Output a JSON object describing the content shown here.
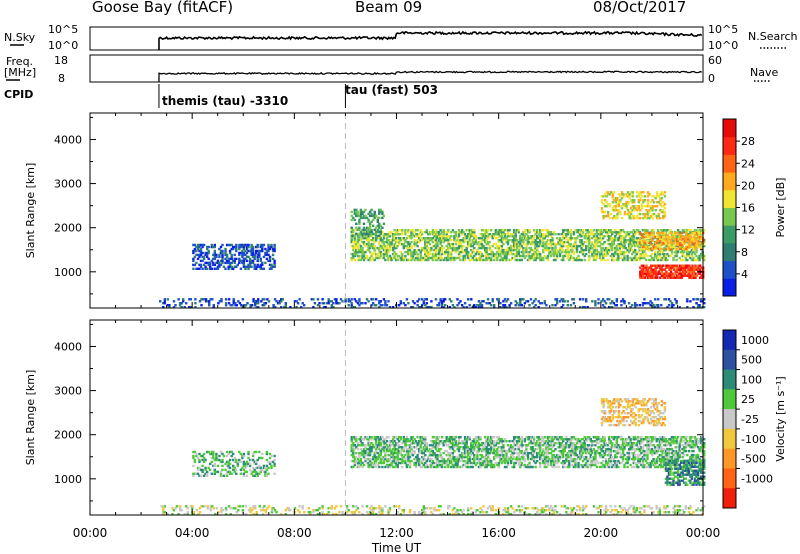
{
  "header": {
    "station": "Goose Bay (fitACF)",
    "beam": "Beam 09",
    "date": "08/Oct/2017"
  },
  "strip_labels": {
    "nsky": "N.Sky",
    "nsky_top": "10^5",
    "nsky_bottom": "10^0",
    "nsearch": "N.Search",
    "nsearch_top": "10^5",
    "nsearch_bottom": "10^0",
    "freq_line1": "Freq.",
    "freq_line2": "[MHz]",
    "freq_top": "18",
    "freq_bottom": "8",
    "nave": "Nave",
    "nave_top": "60",
    "nave_bottom": "0",
    "cpid": "CPID"
  },
  "cpid_modes": [
    {
      "label": "themis (tau) -3310",
      "start_hour": 2.7
    },
    {
      "label": "tau (fast) 503",
      "start_hour": 10.0
    }
  ],
  "chart_data": [
    {
      "type": "heatmap",
      "title": "",
      "xlabel": "Time UT",
      "ylabel": "Slant Range [km]",
      "x_ticks": [
        "00:00",
        "04:00",
        "08:00",
        "12:00",
        "16:00",
        "20:00",
        "00:00"
      ],
      "xlim_hours": [
        0,
        24
      ],
      "y_ticks": [
        1000,
        2000,
        3000,
        4000
      ],
      "ylim_km": [
        180,
        4600
      ],
      "colorbar": {
        "label": "Power [dB]",
        "ticks": [
          4,
          8,
          12,
          16,
          20,
          24,
          28
        ],
        "range": [
          0,
          32
        ],
        "colors": [
          "#0a1ee6",
          "#1e50c8",
          "#2d7d73",
          "#3c9b64",
          "#78c850",
          "#f0e632",
          "#ffaa1e",
          "#ff6414",
          "#ff2814",
          "#e60a0a"
        ]
      },
      "echo_regions": [
        {
          "t0": 2.7,
          "t1": 24,
          "r0": 180,
          "r1": 400,
          "value": 6,
          "density": 0.25
        },
        {
          "t0": 4.0,
          "t1": 7.2,
          "r0": 1050,
          "r1": 1600,
          "value": 6,
          "density": 0.45
        },
        {
          "t0": 10.2,
          "t1": 24,
          "r0": 1250,
          "r1": 1950,
          "value": 13,
          "density": 0.55
        },
        {
          "t0": 10.2,
          "t1": 11.5,
          "r0": 1800,
          "r1": 2400,
          "value": 12,
          "density": 0.35
        },
        {
          "t0": 20.0,
          "t1": 22.5,
          "r0": 2200,
          "r1": 2800,
          "value": 17,
          "density": 0.4
        },
        {
          "t0": 21.5,
          "t1": 24,
          "r0": 850,
          "r1": 1150,
          "value": 26,
          "density": 0.75
        },
        {
          "t0": 21.5,
          "t1": 24,
          "r0": 1500,
          "r1": 1900,
          "value": 22,
          "density": 0.5
        }
      ]
    },
    {
      "type": "heatmap",
      "title": "",
      "xlabel": "Time UT",
      "ylabel": "Slant Range [km]",
      "x_ticks": [
        "00:00",
        "04:00",
        "08:00",
        "12:00",
        "16:00",
        "20:00",
        "00:00"
      ],
      "xlim_hours": [
        0,
        24
      ],
      "y_ticks": [
        1000,
        2000,
        3000,
        4000
      ],
      "ylim_km": [
        180,
        4600
      ],
      "colorbar": {
        "label": "Velocity [m s⁻¹]",
        "ticks": [
          "1000",
          "500",
          "100",
          "25",
          "-25",
          "-100",
          "-500",
          "-1000"
        ],
        "colors": [
          "#1428b4",
          "#2d50a0",
          "#2d8c78",
          "#50c83c",
          "#c8c8c8",
          "#f0c83c",
          "#ff9628",
          "#ff6414",
          "#f01e0a"
        ]
      },
      "echo_regions": [
        {
          "t0": 2.7,
          "t1": 24,
          "r0": 180,
          "r1": 400,
          "value": "-25",
          "density": 0.25
        },
        {
          "t0": 4.0,
          "t1": 7.2,
          "r0": 1050,
          "r1": 1600,
          "value": "25",
          "density": 0.35
        },
        {
          "t0": 10.2,
          "t1": 24,
          "r0": 1250,
          "r1": 1950,
          "value": "25",
          "density": 0.55
        },
        {
          "t0": 20.0,
          "t1": 22.5,
          "r0": 2200,
          "r1": 2800,
          "value": "-100",
          "density": 0.4
        },
        {
          "t0": 22.5,
          "t1": 24,
          "r0": 850,
          "r1": 1400,
          "value": "100",
          "density": 0.6
        }
      ]
    }
  ]
}
